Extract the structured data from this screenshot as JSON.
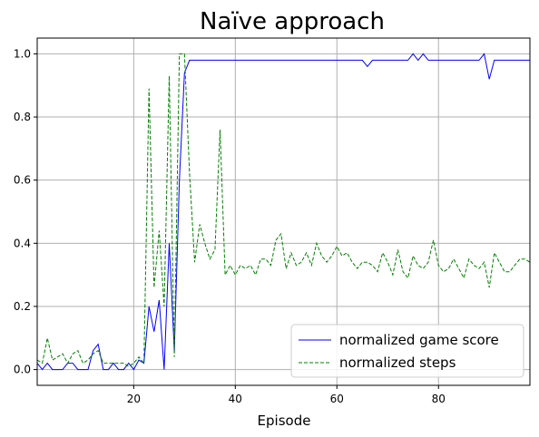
{
  "chart_data": {
    "type": "line",
    "title": "Naïve approach",
    "xlabel": "Episode",
    "ylabel": "",
    "xlim": [
      1,
      98
    ],
    "ylim": [
      -0.05,
      1.05
    ],
    "xticks": [
      20,
      40,
      60,
      80
    ],
    "yticks": [
      0.0,
      0.2,
      0.4,
      0.6,
      0.8,
      1.0
    ],
    "xtick_labels": [
      "20",
      "40",
      "60",
      "80"
    ],
    "ytick_labels": [
      "0.0",
      "0.2",
      "0.4",
      "0.6",
      "0.8",
      "1.0"
    ],
    "grid": true,
    "legend_position": "lower-right",
    "series": [
      {
        "name": "normalized game score",
        "color": "#0000ff",
        "style": "solid",
        "x": [
          1,
          2,
          3,
          4,
          5,
          6,
          7,
          8,
          9,
          10,
          11,
          12,
          13,
          14,
          15,
          16,
          17,
          18,
          19,
          20,
          21,
          22,
          23,
          24,
          25,
          26,
          27,
          28,
          29,
          30,
          31,
          32,
          33,
          34,
          35,
          36,
          37,
          38,
          39,
          40,
          41,
          42,
          43,
          44,
          45,
          46,
          47,
          48,
          49,
          50,
          51,
          52,
          53,
          54,
          55,
          56,
          57,
          58,
          59,
          60,
          61,
          62,
          63,
          64,
          65,
          66,
          67,
          68,
          69,
          70,
          71,
          72,
          73,
          74,
          75,
          76,
          77,
          78,
          79,
          80,
          81,
          82,
          83,
          84,
          85,
          86,
          87,
          88,
          89,
          90,
          91,
          92,
          93,
          94,
          95,
          96,
          97,
          98
        ],
        "y": [
          0.02,
          0,
          0.02,
          0,
          0,
          0,
          0.02,
          0.02,
          0,
          0,
          0,
          0.06,
          0.08,
          0,
          0,
          0.02,
          0,
          0,
          0.02,
          0,
          0.03,
          0.02,
          0.2,
          0.12,
          0.22,
          0,
          0.4,
          0.06,
          0.6,
          0.94,
          0.98,
          0.98,
          0.98,
          0.98,
          0.98,
          0.98,
          0.98,
          0.98,
          0.98,
          0.98,
          0.98,
          0.98,
          0.98,
          0.98,
          0.98,
          0.98,
          0.98,
          0.98,
          0.98,
          0.98,
          0.98,
          0.98,
          0.98,
          0.98,
          0.98,
          0.98,
          0.98,
          0.98,
          0.98,
          0.98,
          0.98,
          0.98,
          0.98,
          0.98,
          0.98,
          0.96,
          0.98,
          0.98,
          0.98,
          0.98,
          0.98,
          0.98,
          0.98,
          0.98,
          1.0,
          0.98,
          1.0,
          0.98,
          0.98,
          0.98,
          0.98,
          0.98,
          0.98,
          0.98,
          0.98,
          0.98,
          0.98,
          0.98,
          1.0,
          0.92,
          0.98,
          0.98,
          0.98,
          0.98,
          0.98,
          0.98,
          0.98,
          0.98
        ]
      },
      {
        "name": "normalized steps",
        "color": "#008000",
        "style": "dashed",
        "x": [
          1,
          2,
          3,
          4,
          5,
          6,
          7,
          8,
          9,
          10,
          11,
          12,
          13,
          14,
          15,
          16,
          17,
          18,
          19,
          20,
          21,
          22,
          23,
          24,
          25,
          26,
          27,
          28,
          29,
          30,
          31,
          32,
          33,
          34,
          35,
          36,
          37,
          38,
          39,
          40,
          41,
          42,
          43,
          44,
          45,
          46,
          47,
          48,
          49,
          50,
          51,
          52,
          53,
          54,
          55,
          56,
          57,
          58,
          59,
          60,
          61,
          62,
          63,
          64,
          65,
          66,
          67,
          68,
          69,
          70,
          71,
          72,
          73,
          74,
          75,
          76,
          77,
          78,
          79,
          80,
          81,
          82,
          83,
          84,
          85,
          86,
          87,
          88,
          89,
          90,
          91,
          92,
          93,
          94,
          95,
          96,
          97,
          98
        ],
        "y": [
          0.03,
          0.02,
          0.1,
          0.03,
          0.04,
          0.05,
          0.02,
          0.05,
          0.06,
          0.02,
          0.03,
          0.05,
          0.06,
          0.02,
          0.02,
          0.02,
          0.02,
          0.02,
          0.01,
          0.02,
          0.04,
          0.02,
          0.89,
          0.26,
          0.44,
          0.2,
          0.93,
          0.04,
          1.0,
          1.0,
          0.62,
          0.34,
          0.46,
          0.4,
          0.35,
          0.38,
          0.76,
          0.3,
          0.33,
          0.3,
          0.33,
          0.32,
          0.33,
          0.3,
          0.35,
          0.35,
          0.33,
          0.41,
          0.43,
          0.32,
          0.37,
          0.33,
          0.34,
          0.37,
          0.33,
          0.4,
          0.36,
          0.34,
          0.36,
          0.39,
          0.36,
          0.37,
          0.34,
          0.32,
          0.34,
          0.34,
          0.33,
          0.31,
          0.37,
          0.34,
          0.3,
          0.38,
          0.31,
          0.29,
          0.36,
          0.33,
          0.32,
          0.34,
          0.41,
          0.33,
          0.31,
          0.32,
          0.35,
          0.32,
          0.29,
          0.35,
          0.33,
          0.32,
          0.34,
          0.26,
          0.37,
          0.34,
          0.31,
          0.31,
          0.33,
          0.35,
          0.35,
          0.34
        ]
      }
    ]
  }
}
